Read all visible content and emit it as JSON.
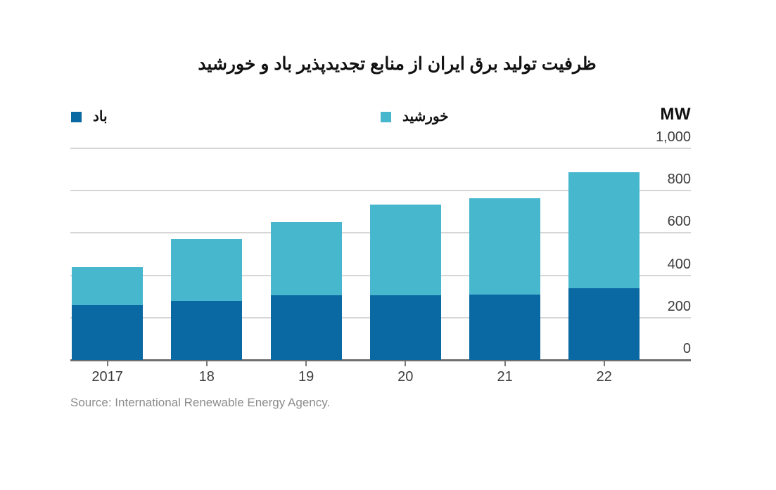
{
  "title": "ظرفیت تولید برق ایران از منابع تجدیدپذیر باد و خورشید",
  "axis_unit": "MW",
  "source": "Source: International Renewable Energy Agency.",
  "legend": {
    "wind_label": "باد",
    "solar_label": "خورشید"
  },
  "colors": {
    "wind": "#0a68a2",
    "solar": "#47b7ce",
    "axis": "#6e6e6e",
    "grid": "#d6d6d6",
    "tick": "#7a7a7a"
  },
  "chart_data": {
    "type": "bar",
    "stacked": true,
    "title": "ظرفیت تولید برق ایران از منابع تجدیدپذیر باد و خورشید",
    "categories": [
      "2017",
      "18",
      "19",
      "20",
      "21",
      "22"
    ],
    "series": [
      {
        "name": "باد",
        "key": "wind",
        "values": [
          260,
          280,
          305,
          305,
          310,
          340
        ]
      },
      {
        "name": "خورشید",
        "key": "solar",
        "values": [
          180,
          290,
          345,
          430,
          455,
          545
        ]
      }
    ],
    "totals": [
      440,
      570,
      650,
      735,
      765,
      885
    ],
    "xlabel": "",
    "ylabel": "MW",
    "yticks": [
      0,
      200,
      400,
      600,
      800,
      1000
    ],
    "ylim": [
      0,
      1000
    ],
    "grid": true,
    "legend_position": "top",
    "source": "Source: International Renewable Energy Agency."
  }
}
